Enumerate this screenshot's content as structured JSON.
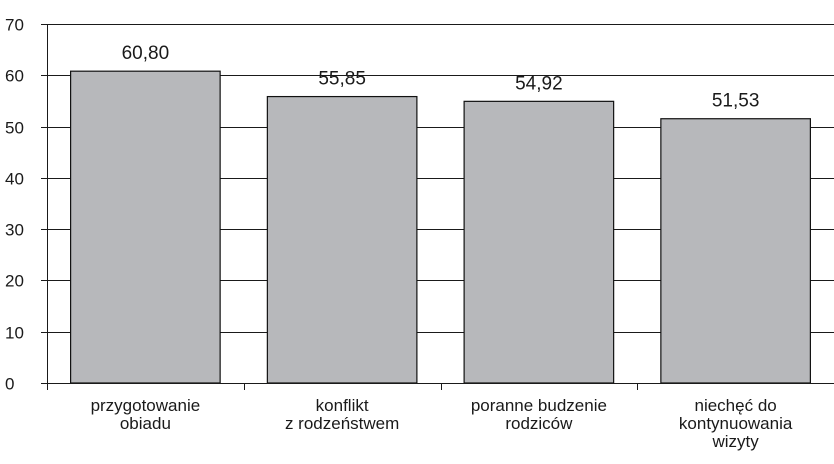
{
  "chart_data": {
    "type": "bar",
    "categories": [
      [
        "przygotowanie",
        "obiadu"
      ],
      [
        "konflikt",
        "z rodzeństwem"
      ],
      [
        "poranne budzenie",
        "rodziców"
      ],
      [
        "niechęć do",
        "kontynuowania",
        "wizyty"
      ]
    ],
    "values": [
      60.8,
      55.85,
      54.92,
      51.53
    ],
    "value_labels": [
      "60,80",
      "55,85",
      "54,92",
      "51,53"
    ],
    "yticks": [
      "0",
      "10",
      "20",
      "30",
      "40",
      "50",
      "60",
      "70"
    ],
    "ylim": [
      0,
      70
    ],
    "grid": true,
    "title": "",
    "xlabel": "",
    "ylabel": "",
    "colors": {
      "bar_fill": "#b7b8bb",
      "bar_stroke": "#111111",
      "grid": "#1a1a1a",
      "axis": "#1a1a1a"
    }
  }
}
